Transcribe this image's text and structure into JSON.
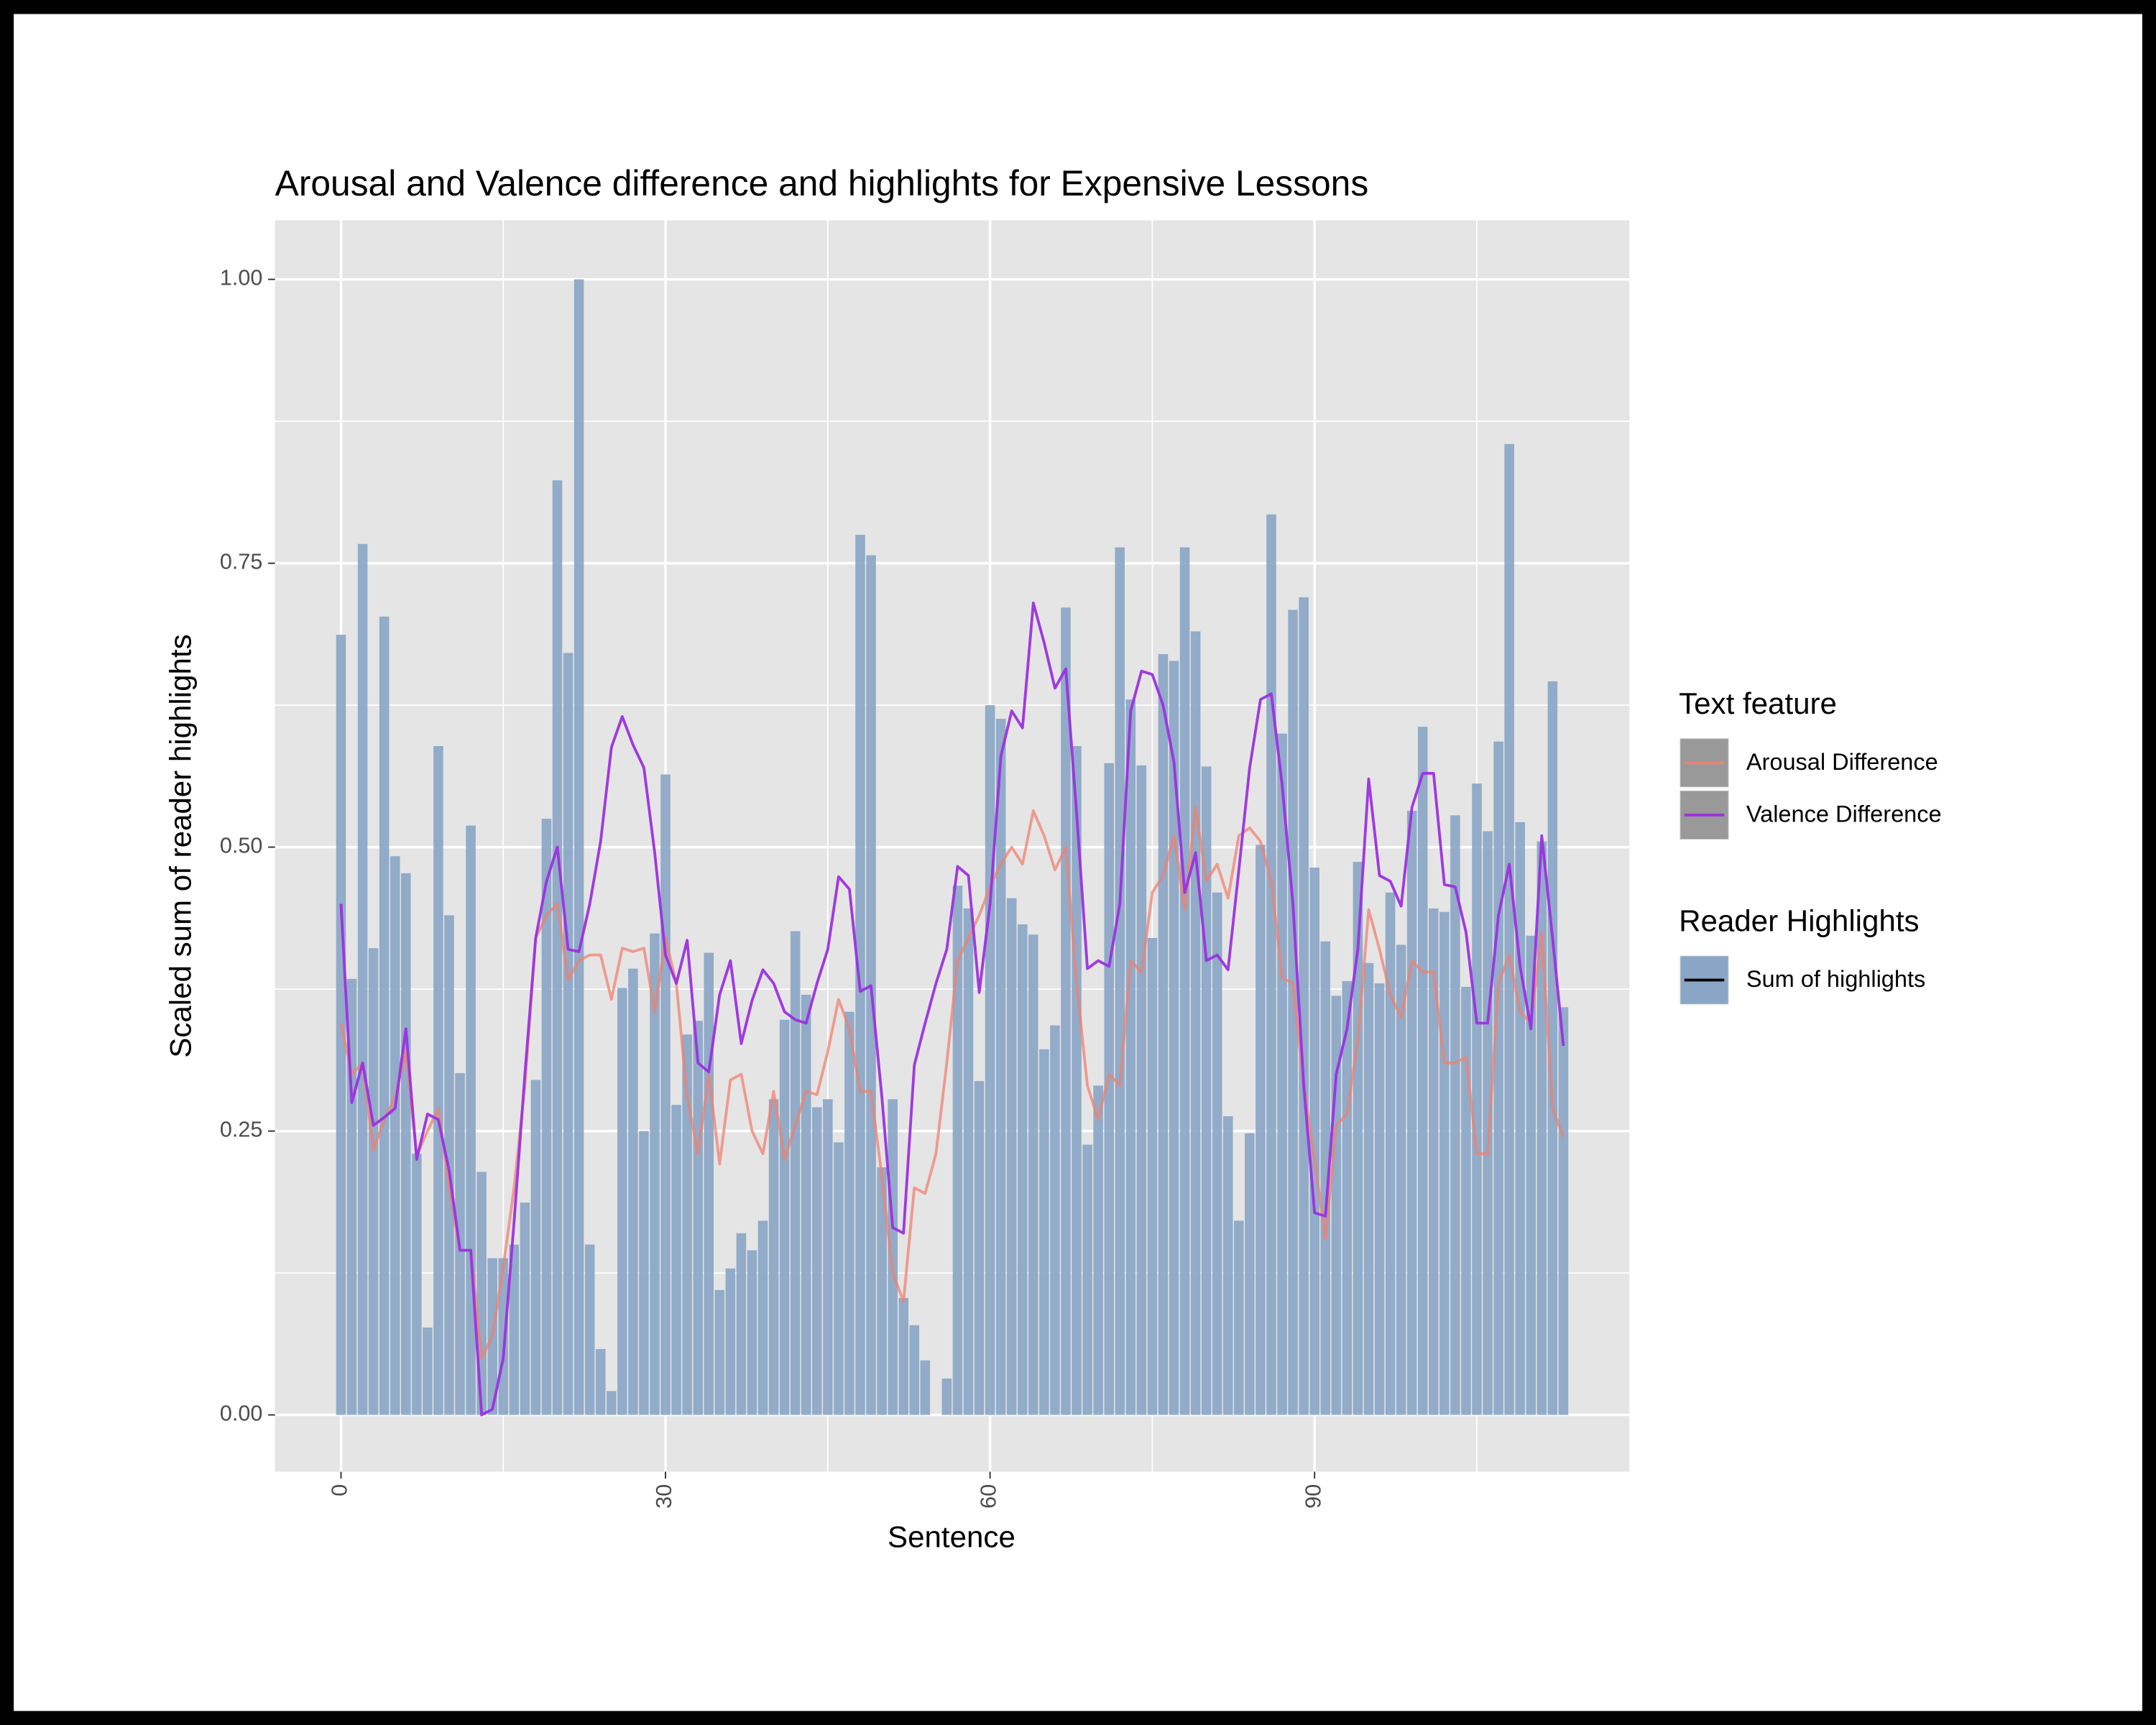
{
  "chart_data": {
    "type": "combo",
    "title": "Arousal and Valence difference and highlights for Expensive Lessons",
    "x_label": "Sentence",
    "y_label": "Scaled sum of reader highlights",
    "grid": true,
    "legend": "right",
    "xlim": [
      -6.1,
      119.1
    ],
    "ylim": [
      -0.05,
      1.052
    ],
    "xticks": [
      0,
      30,
      60,
      90
    ],
    "yticks": [
      {
        "value": 0,
        "label": "0.00"
      },
      {
        "value": 0.25,
        "label": "0.25"
      },
      {
        "value": 0.5,
        "label": "0.50"
      },
      {
        "value": 0.75,
        "label": "0.75"
      },
      {
        "value": 1,
        "label": "1.00"
      }
    ],
    "x": [
      0,
      1,
      2,
      3,
      4,
      5,
      6,
      7,
      8,
      9,
      10,
      11,
      12,
      13,
      14,
      15,
      16,
      17,
      18,
      19,
      20,
      21,
      22,
      23,
      24,
      25,
      26,
      27,
      28,
      29,
      30,
      31,
      32,
      33,
      34,
      35,
      36,
      37,
      38,
      39,
      40,
      41,
      42,
      43,
      44,
      45,
      46,
      47,
      48,
      49,
      50,
      51,
      52,
      53,
      54,
      55,
      56,
      57,
      58,
      59,
      60,
      61,
      62,
      63,
      64,
      65,
      66,
      67,
      68,
      69,
      70,
      71,
      72,
      73,
      74,
      75,
      76,
      77,
      78,
      79,
      80,
      81,
      82,
      83,
      84,
      85,
      86,
      87,
      88,
      89,
      90,
      91,
      92,
      93,
      94,
      95,
      96,
      97,
      98,
      99,
      100,
      101,
      102,
      103,
      104,
      105,
      106,
      107,
      108,
      109,
      110,
      111,
      112,
      113
    ],
    "series_groups": [
      {
        "title": "Text feature",
        "series": [
          {
            "name": "Arousal Difference",
            "type": "line",
            "color": "#f08070",
            "values": [
              0.345,
              0.3,
              0.31,
              0.233,
              0.26,
              0.28,
              0.32,
              0.228,
              0.25,
              0.27,
              0.2,
              0.145,
              0.145,
              0.05,
              0.07,
              0.13,
              0.2,
              0.29,
              0.42,
              0.44,
              0.45,
              0.383,
              0.4,
              0.405,
              0.405,
              0.366,
              0.411,
              0.408,
              0.411,
              0.355,
              0.42,
              0.38,
              0.28,
              0.23,
              0.3,
              0.221,
              0.295,
              0.3,
              0.25,
              0.23,
              0.285,
              0.225,
              0.255,
              0.285,
              0.282,
              0.32,
              0.366,
              0.34,
              0.285,
              0.285,
              0.21,
              0.125,
              0.1,
              0.2,
              0.195,
              0.23,
              0.31,
              0.4,
              0.42,
              0.44,
              0.465,
              0.485,
              0.5,
              0.485,
              0.532,
              0.51,
              0.48,
              0.5,
              0.38,
              0.29,
              0.26,
              0.3,
              0.29,
              0.4,
              0.39,
              0.46,
              0.475,
              0.51,
              0.445,
              0.535,
              0.47,
              0.485,
              0.455,
              0.51,
              0.517,
              0.505,
              0.47,
              0.385,
              0.38,
              0.29,
              0.225,
              0.155,
              0.255,
              0.265,
              0.33,
              0.445,
              0.41,
              0.37,
              0.35,
              0.4,
              0.39,
              0.39,
              0.31,
              0.31,
              0.315,
              0.23,
              0.23,
              0.38,
              0.405,
              0.355,
              0.345,
              0.425,
              0.27,
              0.245
            ]
          },
          {
            "name": "Valence Difference",
            "type": "line",
            "color": "#9b30e0",
            "values": [
              0.45,
              0.275,
              0.31,
              0.255,
              0.262,
              0.27,
              0.34,
              0.225,
              0.265,
              0.26,
              0.215,
              0.145,
              0.145,
              0.0,
              0.005,
              0.05,
              0.17,
              0.3,
              0.42,
              0.47,
              0.5,
              0.41,
              0.408,
              0.45,
              0.505,
              0.588,
              0.615,
              0.59,
              0.57,
              0.495,
              0.405,
              0.38,
              0.418,
              0.31,
              0.302,
              0.37,
              0.4,
              0.327,
              0.365,
              0.392,
              0.38,
              0.355,
              0.348,
              0.345,
              0.38,
              0.41,
              0.474,
              0.463,
              0.373,
              0.378,
              0.28,
              0.165,
              0.16,
              0.308,
              0.345,
              0.38,
              0.41,
              0.483,
              0.475,
              0.372,
              0.45,
              0.58,
              0.62,
              0.605,
              0.715,
              0.68,
              0.64,
              0.657,
              0.53,
              0.393,
              0.4,
              0.395,
              0.45,
              0.62,
              0.655,
              0.652,
              0.625,
              0.575,
              0.46,
              0.495,
              0.4,
              0.405,
              0.392,
              0.48,
              0.57,
              0.63,
              0.635,
              0.555,
              0.45,
              0.29,
              0.178,
              0.175,
              0.3,
              0.34,
              0.41,
              0.56,
              0.475,
              0.47,
              0.448,
              0.535,
              0.565,
              0.565,
              0.467,
              0.465,
              0.425,
              0.345,
              0.345,
              0.44,
              0.485,
              0.395,
              0.34,
              0.51,
              0.42,
              0.325
            ]
          }
        ]
      },
      {
        "title": "Reader Highlights",
        "series": [
          {
            "name": "Sum of highlights",
            "type": "bar",
            "color": "#8aa6c6",
            "values": [
              0.687,
              0.384,
              0.767,
              0.411,
              0.703,
              0.492,
              0.477,
              0.23,
              0.077,
              0.589,
              0.44,
              0.301,
              0.519,
              0.214,
              0.138,
              0.138,
              0.15,
              0.187,
              0.295,
              0.525,
              0.823,
              0.671,
              1.0,
              0.15,
              0.058,
              0.021,
              0.376,
              0.393,
              0.25,
              0.424,
              0.564,
              0.273,
              0.335,
              0.347,
              0.407,
              0.11,
              0.129,
              0.16,
              0.145,
              0.171,
              0.278,
              0.348,
              0.426,
              0.37,
              0.271,
              0.278,
              0.24,
              0.355,
              0.775,
              0.757,
              0.218,
              0.278,
              0.103,
              0.079,
              0.048,
              0,
              0.032,
              0.466,
              0.446,
              0.294,
              0.625,
              0.613,
              0.455,
              0.432,
              0.423,
              0.322,
              0.343,
              0.711,
              0.589,
              0.238,
              0.29,
              0.574,
              0.764,
              0.63,
              0.572,
              0.42,
              0.67,
              0.664,
              0.764,
              0.69,
              0.571,
              0.46,
              0.263,
              0.171,
              0.248,
              0.502,
              0.793,
              0.6,
              0.709,
              0.72,
              0.482,
              0.417,
              0.369,
              0.382,
              0.487,
              0.398,
              0.38,
              0.46,
              0.414,
              0.532,
              0.606,
              0.446,
              0.443,
              0.528,
              0.377,
              0.556,
              0.514,
              0.593,
              0.855,
              0.522,
              0.422,
              0.505,
              0.646,
              0.359
            ]
          }
        ]
      }
    ]
  }
}
